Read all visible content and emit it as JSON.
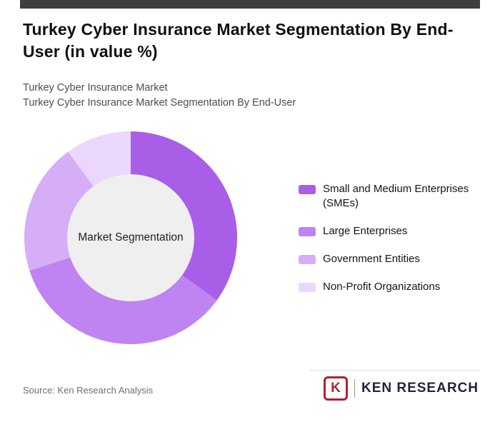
{
  "page": {
    "title": "Turkey Cyber Insurance Market Segmentation By End-User (in value %)",
    "subtitle1": "Turkey Cyber Insurance Market",
    "subtitle2": "Turkey Cyber Insurance Market Segmentation By End-User",
    "source": "Source: Ken Research Analysis",
    "brand": {
      "letter": "K",
      "name": "KEN RESEARCH"
    }
  },
  "chart_data": {
    "type": "pie",
    "donut": true,
    "title": "Turkey Cyber Insurance Market Segmentation By End-User (in value %)",
    "center_label": "Market Segmentation",
    "legend_position": "right",
    "start_angle_deg": 0,
    "direction": "clockwise",
    "categories": [
      "Small and Medium Enterprises (SMEs)",
      "Large Enterprises",
      "Government Entities",
      "Non-Profit Organizations"
    ],
    "values": [
      35,
      35,
      20,
      10
    ],
    "unit": "%",
    "colors": [
      "#a85ee6",
      "#bf83f2",
      "#d6aef7",
      "#ebd7fc"
    ],
    "center_fill": "#efefef"
  }
}
